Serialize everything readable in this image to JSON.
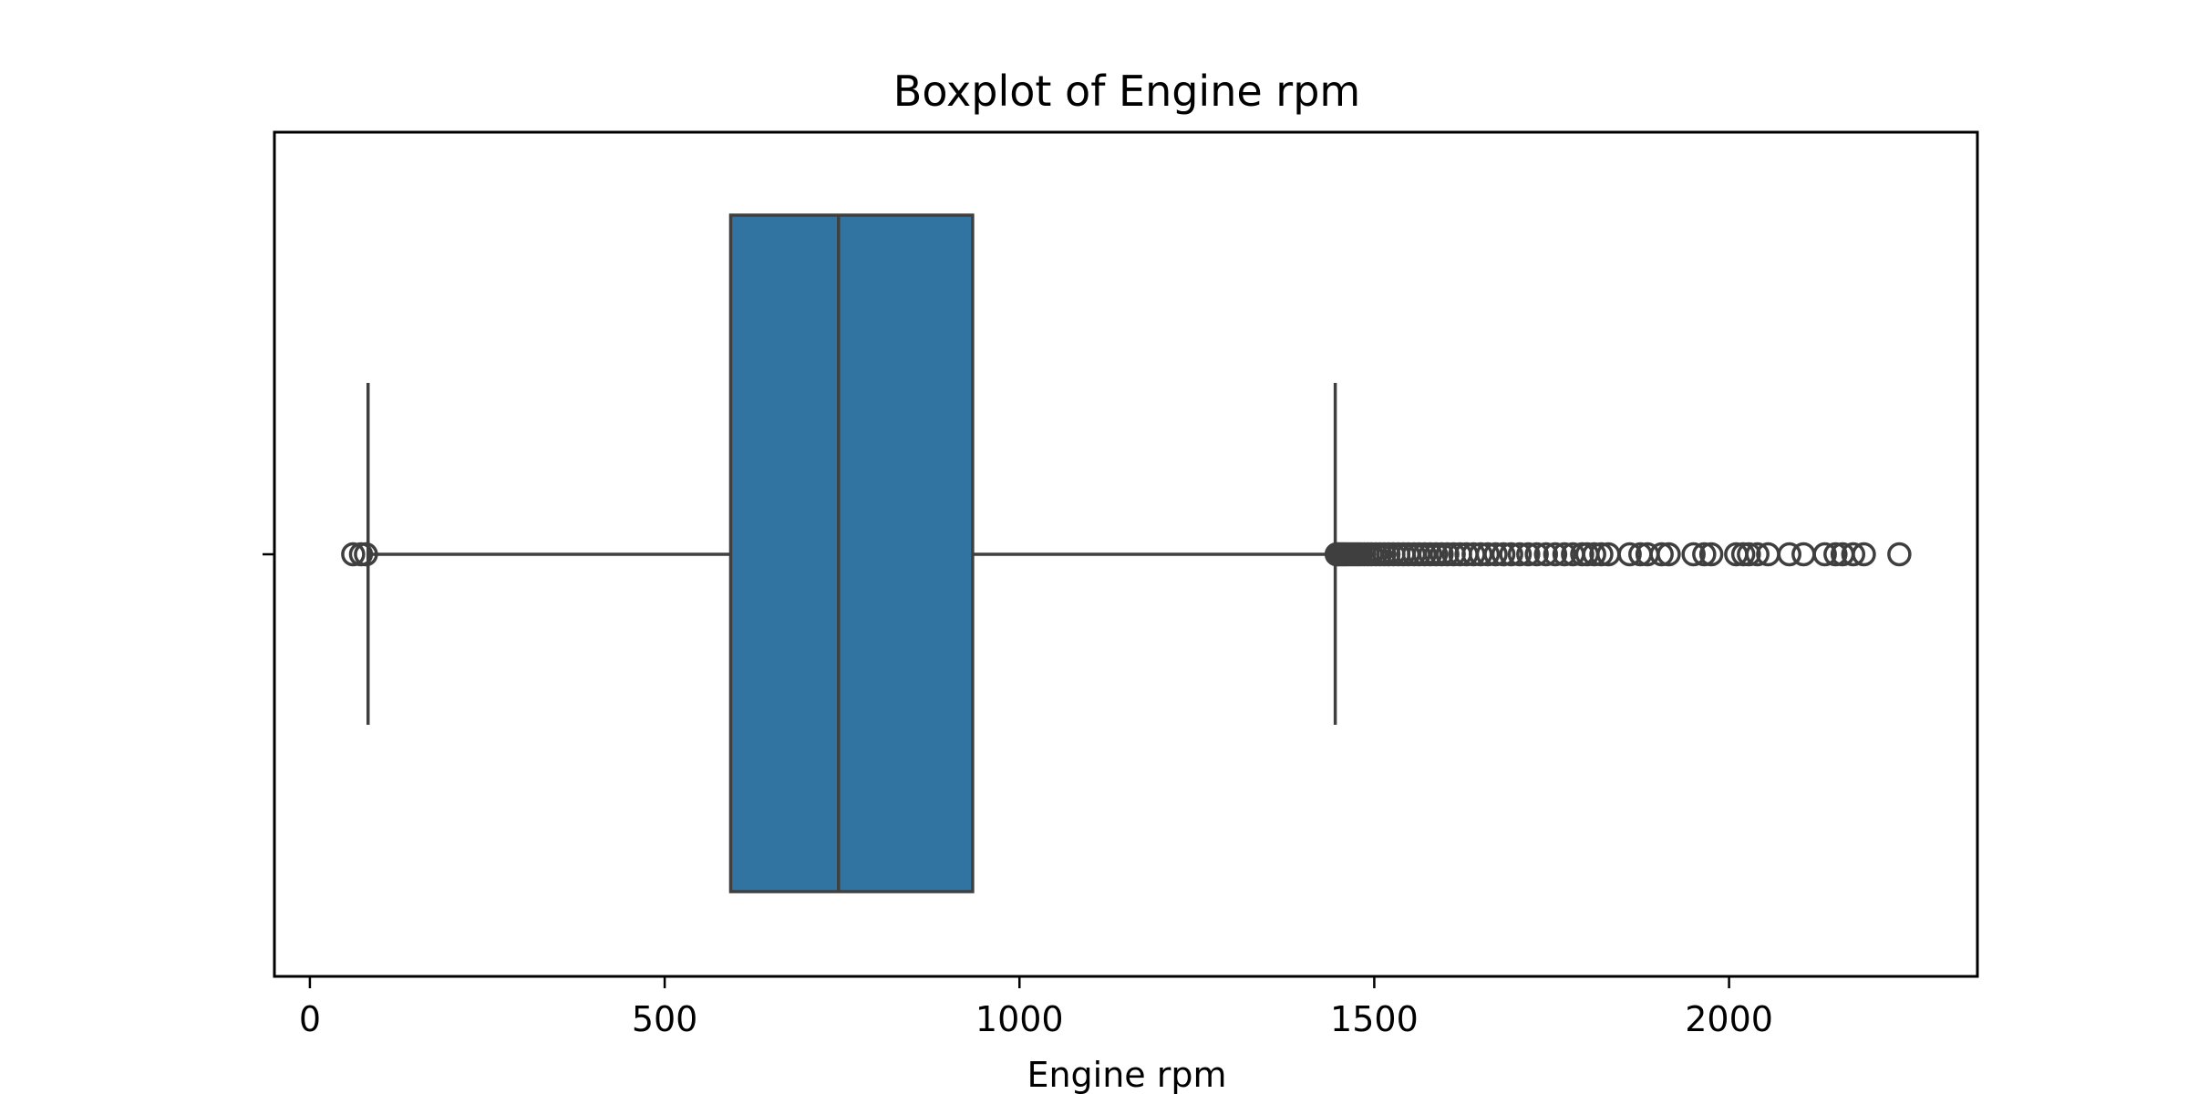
{
  "chart_data": {
    "type": "boxplot",
    "title": "Boxplot of Engine rpm",
    "xlabel": "Engine rpm",
    "ylabel": "",
    "orientation": "horizontal",
    "xlim": [
      -50,
      2350
    ],
    "xticks": [
      0,
      500,
      1000,
      1500,
      2000
    ],
    "grid": false,
    "colors": {
      "box_fill": "#3274a1",
      "line": "#3f3f3f",
      "axes": "#000000"
    },
    "box": {
      "whisker_low": 82,
      "q1": 593,
      "median": 745,
      "q3": 934,
      "whisker_high": 1445
    },
    "outliers_low": [
      61,
      72,
      79
    ],
    "outliers_high": [
      1447,
      1449,
      1452,
      1455,
      1458,
      1461,
      1465,
      1469,
      1473,
      1477,
      1481,
      1486,
      1491,
      1496,
      1502,
      1508,
      1514,
      1520,
      1527,
      1534,
      1541,
      1548,
      1556,
      1563,
      1571,
      1579,
      1587,
      1595,
      1603,
      1612,
      1621,
      1630,
      1640,
      1650,
      1660,
      1671,
      1682,
      1693,
      1705,
      1717,
      1729,
      1742,
      1755,
      1768,
      1780,
      1793,
      1800,
      1810,
      1820,
      1830,
      1860,
      1875,
      1885,
      1905,
      1915,
      1950,
      1965,
      1975,
      2010,
      2020,
      2028,
      2040,
      2055,
      2085,
      2105,
      2135,
      2150,
      2160,
      2175,
      2190,
      2240
    ]
  }
}
